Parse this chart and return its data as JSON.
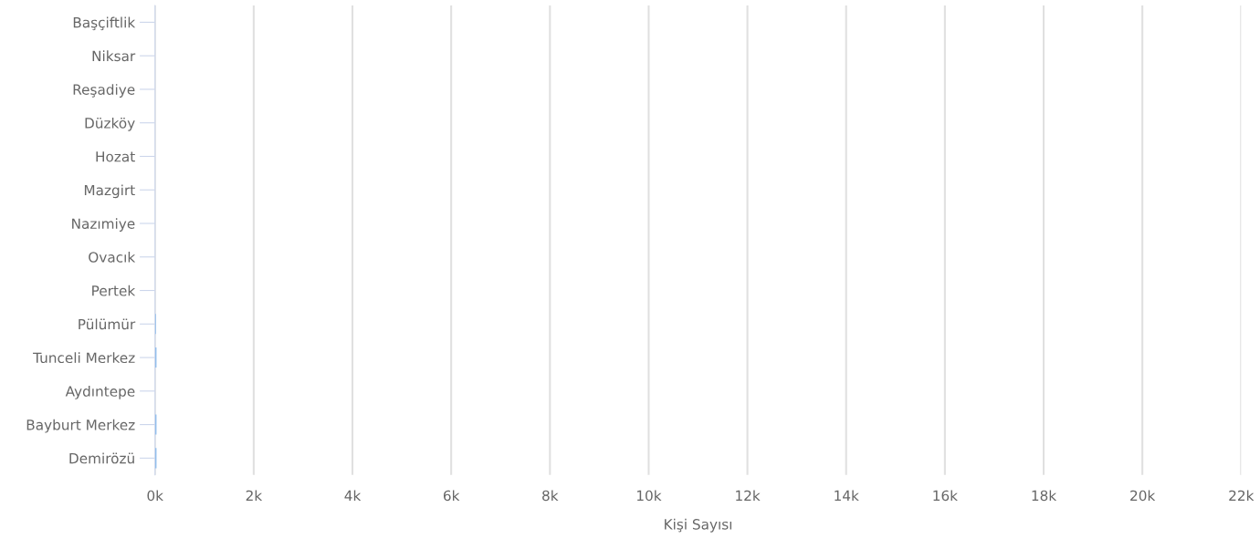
{
  "chart_data": {
    "type": "bar",
    "orientation": "horizontal",
    "xlabel": "Kişi Sayısı",
    "categories": [
      "Başçiftlik",
      "Niksar",
      "Reşadiye",
      "Düzköy",
      "Hozat",
      "Mazgirt",
      "Nazımiye",
      "Ovacık",
      "Pertek",
      "Pülümür",
      "Tunceli Merkez",
      "Aydıntepe",
      "Bayburt Merkez",
      "Demirözü"
    ],
    "values": [
      0,
      0,
      0,
      0,
      0,
      0,
      0,
      0,
      0,
      20,
      30,
      0,
      30,
      30
    ],
    "color": "#7cb5ec",
    "xlim": [
      0,
      22000
    ],
    "xticks": [
      {
        "value": 0,
        "label": "0k"
      },
      {
        "value": 2000,
        "label": "2k"
      },
      {
        "value": 4000,
        "label": "4k"
      },
      {
        "value": 6000,
        "label": "6k"
      },
      {
        "value": 8000,
        "label": "8k"
      },
      {
        "value": 10000,
        "label": "10k"
      },
      {
        "value": 12000,
        "label": "12k"
      },
      {
        "value": 14000,
        "label": "14k"
      },
      {
        "value": 16000,
        "label": "16k"
      },
      {
        "value": 18000,
        "label": "18k"
      },
      {
        "value": 20000,
        "label": "20k"
      },
      {
        "value": 22000,
        "label": "22k"
      }
    ],
    "grid": "x"
  }
}
